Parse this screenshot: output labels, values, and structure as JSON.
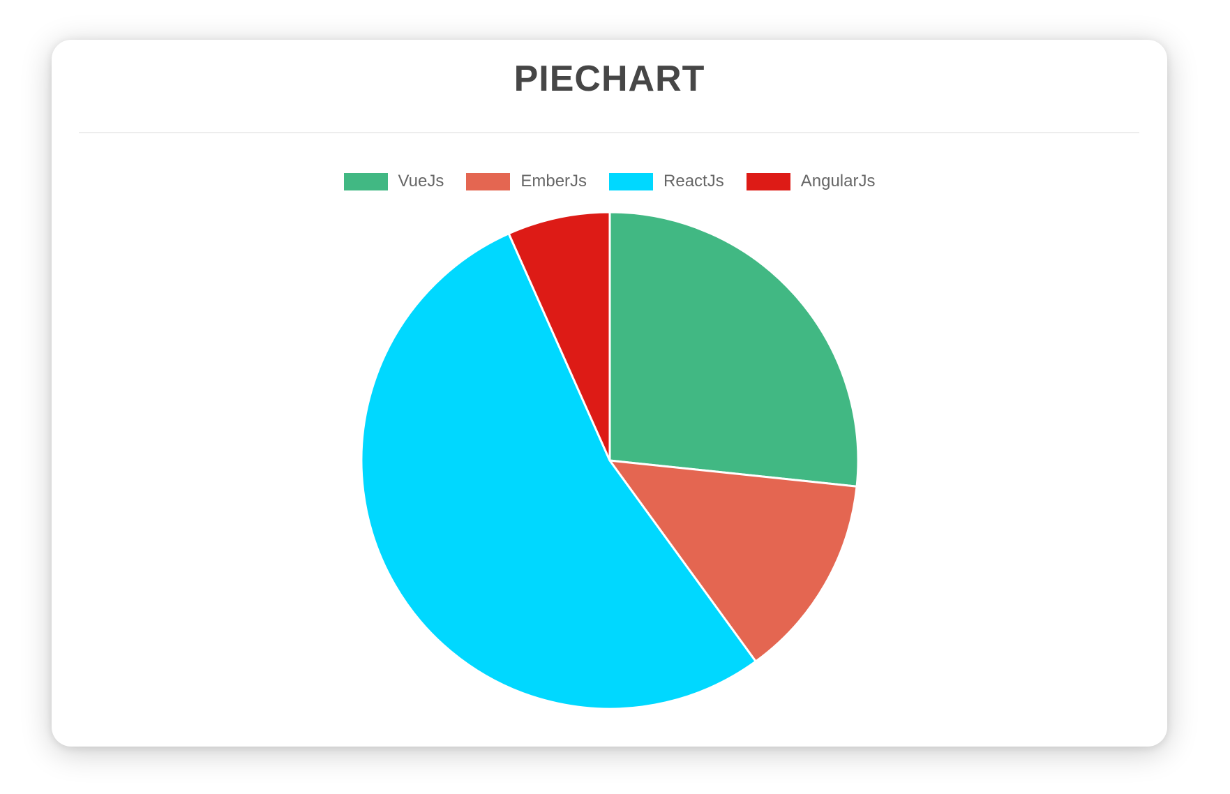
{
  "header": {
    "title": "PIECHART"
  },
  "chart_data": {
    "type": "pie",
    "title": "PIECHART",
    "categories": [
      "VueJs",
      "EmberJs",
      "ReactJs",
      "AngularJs"
    ],
    "values": [
      40,
      20,
      80,
      10
    ],
    "colors": [
      "#41B883",
      "#E46651",
      "#00D8FF",
      "#DD1B16"
    ],
    "legend_position": "top",
    "slice_border_color": "#ffffff",
    "start_angle_deg": -90,
    "direction": "clockwise"
  },
  "style_tokens": {
    "title_color": "#464646",
    "legend_text_color": "#666666",
    "divider_color": "#ededed",
    "card_background": "#ffffff"
  }
}
